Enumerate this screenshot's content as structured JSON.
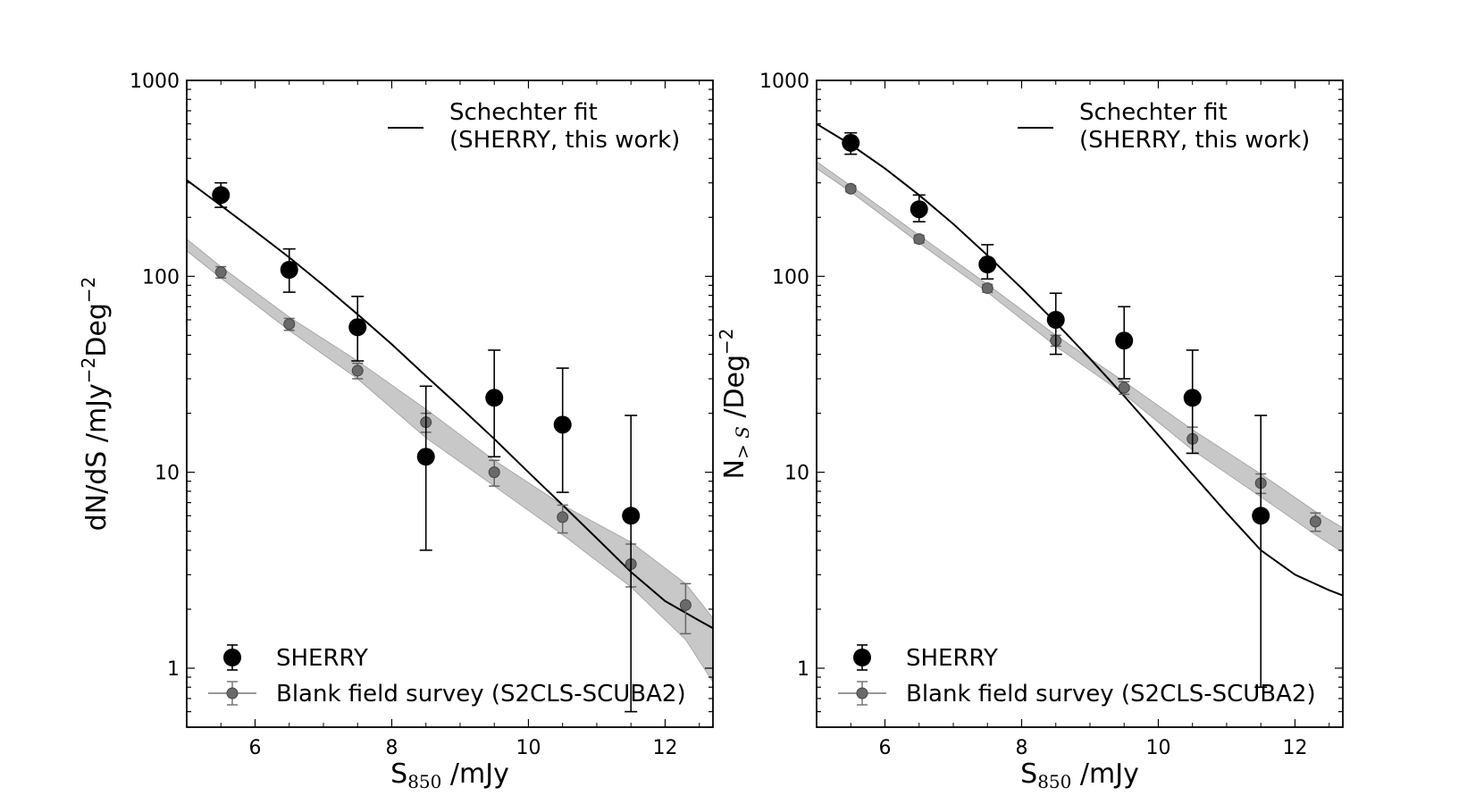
{
  "chart_data": [
    {
      "type": "scatter",
      "xlabel": "S",
      "xlabel_sub": "850",
      "xlabel_unit": " /mJy",
      "ylabel": "dN/dS /mJy",
      "ylabel_sup1": "−2",
      "ylabel_mid": "Deg",
      "ylabel_sup2": "−2",
      "xlim": [
        5.0,
        12.7
      ],
      "ylim": [
        0.5,
        1000
      ],
      "yscale": "log",
      "xticks": [
        6,
        8,
        10,
        12
      ],
      "xtick_labels": [
        "6",
        "8",
        "10",
        "12"
      ],
      "yticks": [
        1,
        10,
        100,
        1000
      ],
      "ytick_labels": [
        "1",
        "10",
        "100",
        "1000"
      ],
      "grid": false,
      "legend_upper": {
        "position": "top-right",
        "entries": [
          "Schechter fit",
          "(SHERRY, this work)"
        ]
      },
      "legend_lower": {
        "position": "bottom-left",
        "entries": [
          "SHERRY",
          "Blank field survey (S2CLS-SCUBA2)"
        ]
      },
      "series": [
        {
          "name": "SHERRY",
          "color": "#000000",
          "x": [
            5.5,
            6.5,
            7.5,
            8.5,
            9.5,
            10.5,
            11.5
          ],
          "y": [
            260,
            108,
            55,
            12,
            24,
            17.5,
            6
          ],
          "yerr_low": [
            225,
            83,
            37,
            4,
            12,
            7.9,
            0.6
          ],
          "yerr_high": [
            300,
            138,
            79,
            27.5,
            42,
            34,
            19.5
          ]
        },
        {
          "name": "Blank field survey (S2CLS-SCUBA2)",
          "color": "#555555",
          "x": [
            5.5,
            6.5,
            7.5,
            8.5,
            9.5,
            10.5,
            11.5,
            12.3
          ],
          "y": [
            105,
            57,
            33,
            18,
            10,
            5.9,
            3.4,
            2.1
          ],
          "yerr_low": [
            98,
            53,
            30,
            16,
            8.5,
            4.9,
            2.6,
            1.5
          ],
          "yerr_high": [
            112,
            61,
            36,
            20,
            11.5,
            6.8,
            4.3,
            2.7
          ]
        },
        {
          "name": "Blank field band",
          "color": "#c8c8c8",
          "x": [
            5.0,
            5.5,
            6.5,
            7.5,
            8.5,
            9.5,
            10.5,
            11.5,
            12.3,
            12.7
          ],
          "y_low": [
            135,
            98,
            53,
            30,
            15,
            8.5,
            4.8,
            2.6,
            1.4,
            0.85
          ],
          "y_high": [
            155,
            112,
            62,
            37,
            21,
            11.5,
            6.8,
            4.4,
            2.7,
            1.8
          ]
        },
        {
          "name": "Schechter fit",
          "color": "#000000",
          "x": [
            5.0,
            5.5,
            6.0,
            6.5,
            7.0,
            7.5,
            8.0,
            8.5,
            9.0,
            9.5,
            10.0,
            10.5,
            11.0,
            11.5,
            12.0,
            12.5,
            12.7
          ],
          "y": [
            310,
            230,
            170,
            125,
            90,
            64,
            45,
            31,
            21.5,
            14.8,
            10,
            6.8,
            4.6,
            3.1,
            2.2,
            1.75,
            1.6
          ]
        }
      ]
    },
    {
      "type": "scatter",
      "xlabel": "S",
      "xlabel_sub": "850",
      "xlabel_unit": " /mJy",
      "ylabel": "N",
      "ylabel_sub": "> S",
      "ylabel_mid": " /Deg",
      "ylabel_sup2": "−2",
      "xlim": [
        5.0,
        12.7
      ],
      "ylim": [
        0.5,
        1000
      ],
      "yscale": "log",
      "xticks": [
        6,
        8,
        10,
        12
      ],
      "xtick_labels": [
        "6",
        "8",
        "10",
        "12"
      ],
      "yticks": [
        1,
        10,
        100,
        1000
      ],
      "ytick_labels": [
        "1",
        "10",
        "100",
        "1000"
      ],
      "grid": false,
      "legend_upper": {
        "position": "top-right",
        "entries": [
          "Schechter fit",
          "(SHERRY, this work)"
        ]
      },
      "legend_lower": {
        "position": "bottom-left",
        "entries": [
          "SHERRY",
          "Blank field survey (S2CLS-SCUBA2)"
        ]
      },
      "series": [
        {
          "name": "SHERRY",
          "color": "#000000",
          "x": [
            5.5,
            6.5,
            7.5,
            8.5,
            9.5,
            10.5,
            11.5
          ],
          "y": [
            480,
            220,
            115,
            60,
            47,
            24,
            6
          ],
          "yerr_low": [
            420,
            190,
            97,
            40,
            30,
            12.5,
            0.8
          ],
          "yerr_high": [
            540,
            260,
            145,
            82,
            70,
            42,
            19.5
          ]
        },
        {
          "name": "Blank field survey (S2CLS-SCUBA2)",
          "color": "#555555",
          "x": [
            5.5,
            6.5,
            7.5,
            8.5,
            9.5,
            10.5,
            11.5,
            12.3
          ],
          "y": [
            280,
            155,
            87,
            47,
            27,
            14.8,
            8.8,
            5.6
          ],
          "yerr_low": [
            270,
            148,
            83,
            44,
            25,
            12.5,
            7.8,
            5.0
          ],
          "yerr_high": [
            290,
            162,
            91,
            50,
            29,
            17,
            9.8,
            6.2
          ]
        },
        {
          "name": "Blank field band",
          "color": "#c8c8c8",
          "x": [
            5.0,
            5.5,
            6.5,
            7.5,
            8.5,
            9.5,
            10.5,
            11.5,
            12.3,
            12.7
          ],
          "y_low": [
            355,
            270,
            148,
            83,
            44,
            25,
            13,
            7.5,
            4.8,
            3.9
          ],
          "y_high": [
            385,
            290,
            162,
            91,
            50,
            29,
            16.5,
            9.8,
            6.3,
            5.2
          ]
        },
        {
          "name": "Schechter fit",
          "color": "#000000",
          "x": [
            5.0,
            5.5,
            6.0,
            6.5,
            7.0,
            7.5,
            8.0,
            8.5,
            9.0,
            9.5,
            10.0,
            10.5,
            11.0,
            11.5,
            12.0,
            12.5,
            12.7
          ],
          "y": [
            600,
            470,
            355,
            260,
            185,
            128,
            87,
            58,
            38,
            24.5,
            15.5,
            9.8,
            6.2,
            4.0,
            3.0,
            2.5,
            2.35
          ]
        }
      ]
    }
  ]
}
